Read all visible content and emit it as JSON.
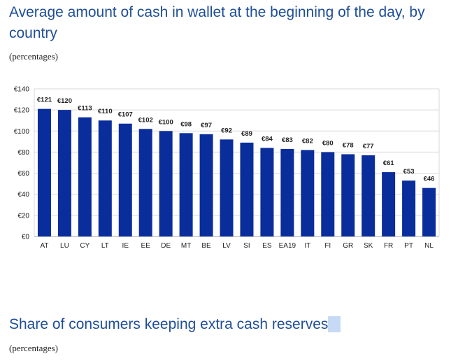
{
  "sections": [
    {
      "title": "Average amount of cash in wallet at the beginning of the day, by country",
      "subtitle": "(percentages)"
    },
    {
      "title": "Share of consumers keeping extra cash reserves",
      "subtitle": "(percentages)"
    }
  ],
  "chart_data": {
    "type": "bar",
    "title": "",
    "xlabel": "",
    "ylabel": "",
    "categories": [
      "AT",
      "LU",
      "CY",
      "LT",
      "IE",
      "EE",
      "DE",
      "MT",
      "BE",
      "LV",
      "SI",
      "ES",
      "EA19",
      "IT",
      "FI",
      "GR",
      "SK",
      "FR",
      "PT",
      "NL"
    ],
    "values": [
      121,
      120,
      113,
      110,
      107,
      102,
      100,
      98,
      97,
      92,
      89,
      84,
      83,
      82,
      80,
      78,
      77,
      61,
      53,
      46
    ],
    "data_labels": [
      "€121",
      "€120",
      "€113",
      "€110",
      "€107",
      "€102",
      "€100",
      "€98",
      "€97",
      "€92",
      "€89",
      "€84",
      "€83",
      "€82",
      "€80",
      "€78",
      "€77",
      "€61",
      "€53",
      "€46"
    ],
    "ylim": [
      0,
      140
    ],
    "yticks": [
      0,
      20,
      40,
      60,
      80,
      100,
      120,
      140
    ],
    "ytick_labels": [
      "€0",
      "€20",
      "€40",
      "€60",
      "€80",
      "€100",
      "€120",
      "€140"
    ],
    "grid": true,
    "legend": "none",
    "colors": {
      "bar": "#0a2d9c",
      "grid": "#d9d9d9",
      "axis": "#a6a6a6",
      "text": "#222222"
    }
  }
}
